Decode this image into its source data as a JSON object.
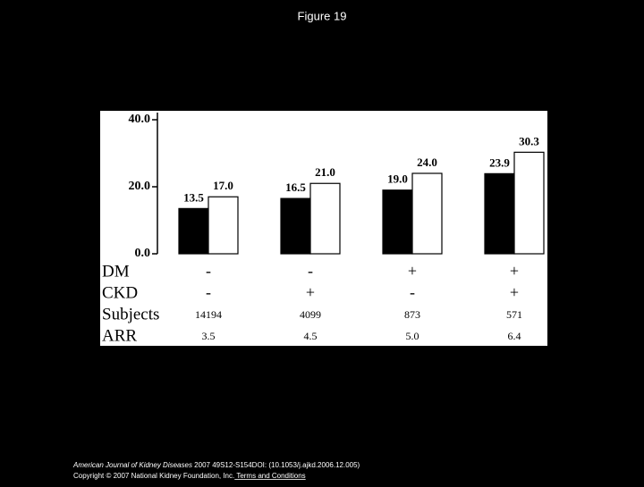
{
  "title": "Figure 19",
  "chart_data": {
    "type": "bar",
    "categories": [
      null,
      null,
      null,
      null
    ],
    "series": [
      {
        "color": "#000000",
        "values": [
          13.5,
          16.5,
          19.0,
          23.9
        ],
        "value_labels": [
          "13.5",
          "16.5",
          "19.0",
          "23.9"
        ]
      },
      {
        "color": "#ffffff",
        "values": [
          17.0,
          21.0,
          24.0,
          30.3
        ],
        "value_labels": [
          "17.0",
          "21.0",
          "24.0",
          "30.3"
        ]
      }
    ],
    "ylim": [
      0,
      40
    ],
    "yticks": [
      {
        "value": 0,
        "label": "0.0"
      },
      {
        "value": 20,
        "label": "20.0"
      },
      {
        "value": 40,
        "label": "40.0"
      }
    ],
    "table": {
      "rows": [
        [
          "DM",
          "-",
          "-",
          "+",
          "+"
        ],
        [
          "CKD",
          "-",
          "+",
          "-",
          "+"
        ],
        [
          "Subjects",
          "14194",
          "4099",
          "873",
          "571"
        ],
        [
          "ARR",
          "3.5",
          "4.5",
          "5.0",
          "6.4"
        ]
      ]
    }
  },
  "footer": {
    "journal": "American Journal of Kidney Diseases",
    "citation": " 2007 49S12-S154DOI: (10.1053/j.ajkd.2006.12.005)",
    "copyright": "Copyright © 2007 National Kidney Foundation, Inc.",
    "link": " Terms and Conditions"
  }
}
